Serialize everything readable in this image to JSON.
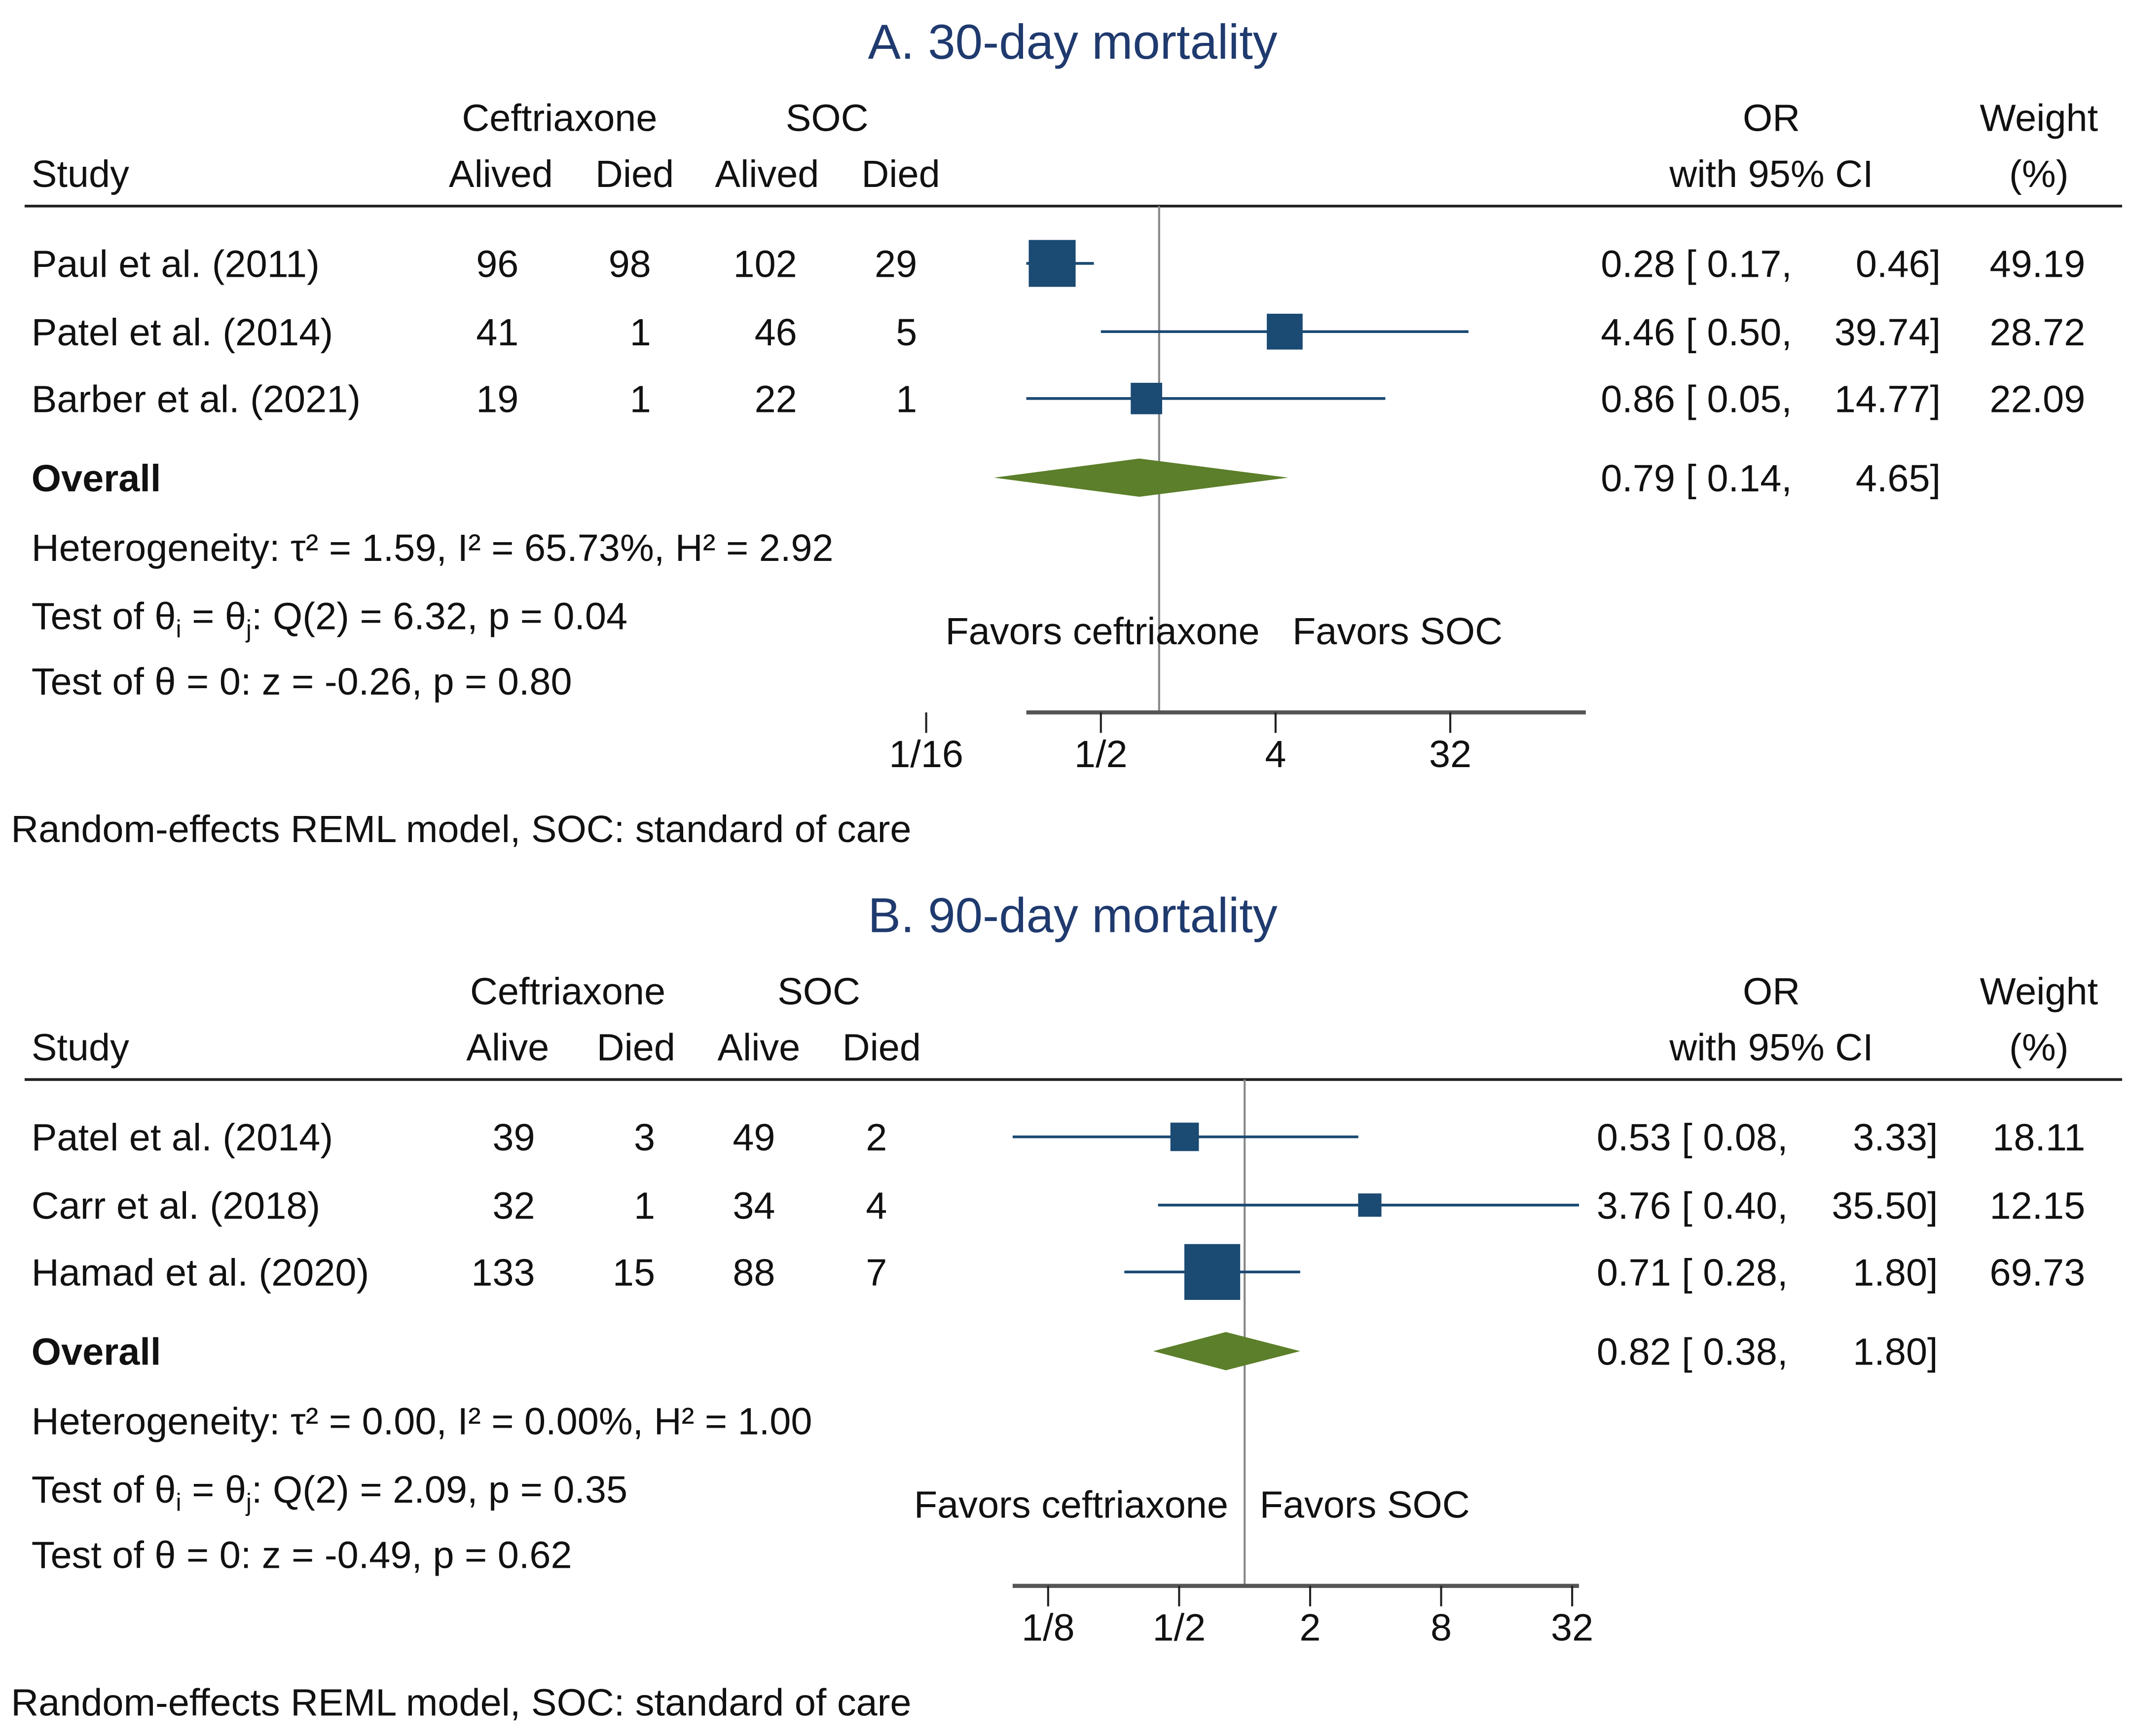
{
  "chart_data": [
    {
      "type": "forest",
      "title": "A. 30-day mortality",
      "headers": {
        "study": "Study",
        "group1": "Ceftriaxone",
        "group2": "SOC",
        "alive": "Alived",
        "died": "Died",
        "or": "OR",
        "ci": "with 95% CI",
        "weight": "Weight",
        "weight_unit": "(%)"
      },
      "studies": [
        {
          "name": "Paul et al. (2011)",
          "c_alive": "96",
          "c_died": "98",
          "s_alive": "102",
          "s_died": "29",
          "or": 0.28,
          "lo": 0.17,
          "hi": 0.46,
          "or_text": "0.28 [ 0.17,",
          "hi_text": "0.46]",
          "weight": "49.19"
        },
        {
          "name": "Patel et al. (2014)",
          "c_alive": "41",
          "c_died": "1",
          "s_alive": "46",
          "s_died": "5",
          "or": 4.46,
          "lo": 0.5,
          "hi": 39.74,
          "or_text": "4.46 [ 0.50,",
          "hi_text": "39.74]",
          "weight": "28.72"
        },
        {
          "name": "Barber et al. (2021)",
          "c_alive": "19",
          "c_died": "1",
          "s_alive": "22",
          "s_died": "1",
          "or": 0.86,
          "lo": 0.05,
          "hi": 14.77,
          "or_text": "0.86 [ 0.05,",
          "hi_text": "14.77]",
          "weight": "22.09"
        }
      ],
      "overall": {
        "label": "Overall",
        "or": 0.79,
        "lo": 0.14,
        "hi": 4.65,
        "or_text": "0.79 [ 0.14,",
        "hi_text": "4.65]"
      },
      "heterogeneity": "Heterogeneity: τ² = 1.59, I² = 65.73%, H² = 2.92",
      "test_q": {
        "pre": "Test of θ",
        "sub_i": "i",
        "mid": " = θ",
        "sub_j": "j",
        "post": ": Q(2) = 6.32, p = 0.04"
      },
      "test_z": "Test of θ = 0: z = -0.26, p = 0.80",
      "favors_left": "Favors ceftriaxone",
      "favors_right": "Favors SOC",
      "ticks": [
        {
          "v": 0.0625,
          "label": "1/16"
        },
        {
          "v": 0.5,
          "label": "1/2"
        },
        {
          "v": 4,
          "label": "4"
        },
        {
          "v": 32,
          "label": "32"
        }
      ],
      "xscale": "log2",
      "xlim": [
        0.055,
        40
      ],
      "footnote": "Random-effects REML model, SOC: standard of care"
    },
    {
      "type": "forest",
      "title": "B. 90-day mortality",
      "headers": {
        "study": "Study",
        "group1": "Ceftriaxone",
        "group2": "SOC",
        "alive": "Alive",
        "died": "Died",
        "or": "OR",
        "ci": "with 95% CI",
        "weight": "Weight",
        "weight_unit": "(%)"
      },
      "studies": [
        {
          "name": "Patel et al. (2014)",
          "c_alive": "39",
          "c_died": "3",
          "s_alive": "49",
          "s_died": "2",
          "or": 0.53,
          "lo": 0.08,
          "hi": 3.33,
          "or_text": "0.53 [ 0.08,",
          "hi_text": "3.33]",
          "weight": "18.11"
        },
        {
          "name": "Carr et al. (2018)",
          "c_alive": "32",
          "c_died": "1",
          "s_alive": "34",
          "s_died": "4",
          "or": 3.76,
          "lo": 0.4,
          "hi": 35.5,
          "or_text": "3.76 [ 0.40,",
          "hi_text": "35.50]",
          "weight": "12.15"
        },
        {
          "name": "Hamad et al. (2020)",
          "c_alive": "133",
          "c_died": "15",
          "s_alive": "88",
          "s_died": "7",
          "or": 0.71,
          "lo": 0.28,
          "hi": 1.8,
          "or_text": "0.71 [ 0.28,",
          "hi_text": "1.80]",
          "weight": "69.73"
        }
      ],
      "overall": {
        "label": "Overall",
        "or": 0.82,
        "lo": 0.38,
        "hi": 1.8,
        "or_text": "0.82 [ 0.38,",
        "hi_text": "1.80]"
      },
      "heterogeneity": "Heterogeneity: τ² = 0.00, I² = 0.00%, H² = 1.00",
      "test_q": {
        "pre": "Test of θ",
        "sub_i": "i",
        "mid": " = θ",
        "sub_j": "j",
        "post": ": Q(2) = 2.09, p = 0.35"
      },
      "test_z": "Test of θ = 0: z = -0.49, p = 0.62",
      "favors_left": "Favors ceftriaxone",
      "favors_right": "Favors SOC",
      "ticks": [
        {
          "v": 0.125,
          "label": "1/8"
        },
        {
          "v": 0.5,
          "label": "1/2"
        },
        {
          "v": 2,
          "label": "2"
        },
        {
          "v": 8,
          "label": "8"
        },
        {
          "v": 32,
          "label": "32"
        }
      ],
      "xscale": "log2",
      "xlim": [
        0.1,
        36
      ],
      "footnote": "Random-effects REML model, SOC: standard of care"
    }
  ],
  "colors": {
    "title": "#1f3a6e",
    "box": "#1b4a73",
    "diamond": "#5b7f2a",
    "axis": "#555555"
  }
}
